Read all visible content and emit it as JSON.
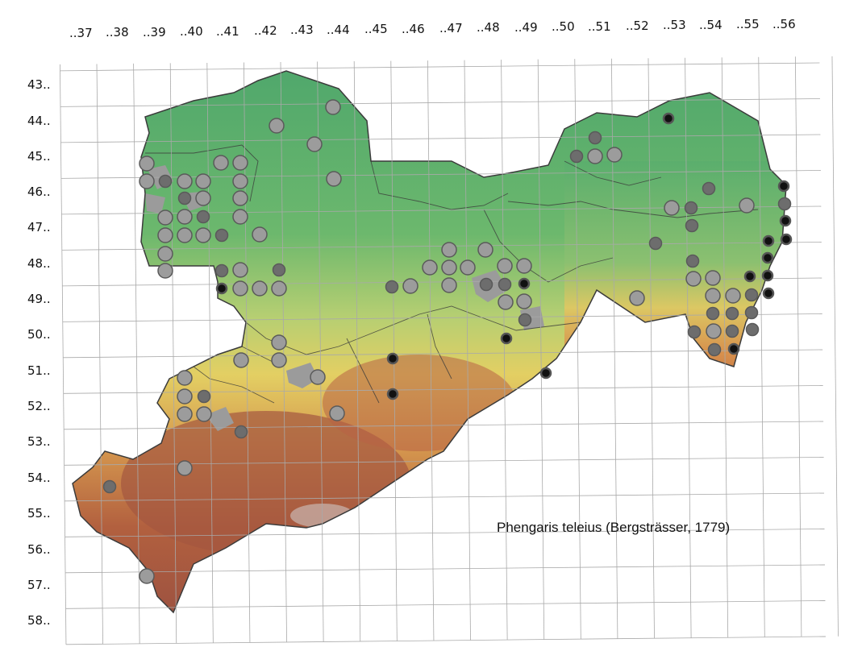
{
  "colors": {
    "grid": "#a9a9a9",
    "border": "#3b3b3b",
    "occ_light": "#9c9c9c",
    "occ_mid": "#6d6d6d",
    "occ_dark": "#111111"
  },
  "columns": [
    "..37",
    "..38",
    "..39",
    "..40",
    "..41",
    "..42",
    "..43",
    "..44",
    "..45",
    "..46",
    "..47",
    "..48",
    "..49",
    "..50",
    "..51",
    "..52",
    "..53",
    "..54",
    "..55",
    "..56"
  ],
  "rows": [
    "43..",
    "44..",
    "45..",
    "46..",
    "47..",
    "48..",
    "49..",
    "50..",
    "51..",
    "52..",
    "53..",
    "54..",
    "55..",
    "56..",
    "57..",
    "58.."
  ],
  "species_label": "Phengaris teleius (Bergsträsser, 1779)",
  "legend_categories": [
    "light",
    "mid",
    "dark"
  ]
}
